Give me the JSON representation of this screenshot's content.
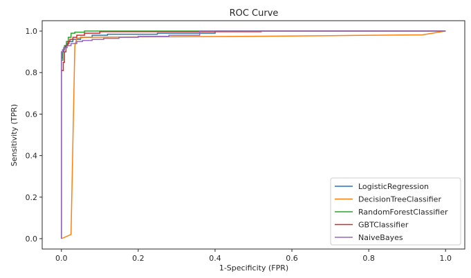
{
  "chart_data": {
    "type": "line",
    "title": "ROC Curve",
    "xlabel": "1-Specificity (FPR)",
    "ylabel": "Sensitivity (TPR)",
    "xlim": [
      -0.05,
      1.05
    ],
    "ylim": [
      -0.05,
      1.05
    ],
    "x_ticks": [
      0.0,
      0.2,
      0.4,
      0.6,
      0.8,
      1.0
    ],
    "y_ticks": [
      0.0,
      0.2,
      0.4,
      0.6,
      0.8,
      1.0
    ],
    "x_tick_labels": [
      "0.0",
      "0.2",
      "0.4",
      "0.6",
      "0.8",
      "1.0"
    ],
    "y_tick_labels": [
      "0.0",
      "0.2",
      "0.4",
      "0.6",
      "0.8",
      "1.0"
    ],
    "grid": false,
    "legend_position": "lower-right",
    "series": [
      {
        "name": "LogisticRegression",
        "color": "#1f77b4",
        "x": [
          0.0,
          0.0,
          0.003,
          0.003,
          0.006,
          0.006,
          0.01,
          0.01,
          0.015,
          0.015,
          0.02,
          0.02,
          0.03,
          0.03,
          0.05,
          0.05,
          0.08,
          0.08,
          0.12,
          0.12,
          0.25,
          0.25,
          0.4,
          0.4,
          1.0
        ],
        "y": [
          0.0,
          0.87,
          0.87,
          0.9,
          0.9,
          0.92,
          0.92,
          0.93,
          0.93,
          0.94,
          0.94,
          0.95,
          0.95,
          0.96,
          0.96,
          0.97,
          0.97,
          0.98,
          0.98,
          0.985,
          0.985,
          0.99,
          0.99,
          1.0,
          1.0
        ]
      },
      {
        "name": "DecisionTreeClassifier",
        "color": "#ff7f0e",
        "x": [
          0.0,
          0.025,
          0.035,
          0.04,
          0.06,
          0.2,
          0.5,
          0.7,
          0.94,
          1.0
        ],
        "y": [
          0.0,
          0.02,
          0.93,
          0.965,
          0.97,
          0.972,
          0.975,
          0.978,
          0.982,
          1.0
        ]
      },
      {
        "name": "RandomForestClassifier",
        "color": "#2ca02c",
        "x": [
          0.0,
          0.0,
          0.004,
          0.004,
          0.008,
          0.008,
          0.013,
          0.013,
          0.018,
          0.018,
          0.025,
          0.025,
          0.035,
          0.035,
          0.06,
          0.06,
          1.0
        ],
        "y": [
          0.0,
          0.86,
          0.86,
          0.91,
          0.91,
          0.93,
          0.93,
          0.95,
          0.95,
          0.97,
          0.97,
          0.99,
          0.99,
          0.995,
          0.995,
          1.0,
          1.0
        ]
      },
      {
        "name": "GBTClassifier",
        "color": "#d62728",
        "x": [
          0.0,
          0.0,
          0.005,
          0.005,
          0.008,
          0.008,
          0.012,
          0.012,
          0.017,
          0.017,
          0.022,
          0.022,
          0.03,
          0.03,
          0.04,
          0.04,
          0.06,
          0.06,
          0.1,
          0.1,
          0.52,
          0.52,
          1.0
        ],
        "y": [
          0.0,
          0.81,
          0.81,
          0.85,
          0.85,
          0.9,
          0.9,
          0.93,
          0.93,
          0.95,
          0.95,
          0.96,
          0.96,
          0.97,
          0.97,
          0.98,
          0.98,
          0.99,
          0.99,
          0.997,
          0.997,
          1.0,
          1.0
        ]
      },
      {
        "name": "NaiveBayes",
        "color": "#9467bd",
        "x": [
          0.0,
          0.0,
          0.003,
          0.003,
          0.008,
          0.008,
          0.015,
          0.015,
          0.025,
          0.025,
          0.04,
          0.04,
          0.055,
          0.055,
          0.08,
          0.08,
          0.11,
          0.11,
          0.15,
          0.15,
          0.2,
          0.2,
          0.28,
          0.28,
          0.36,
          0.36,
          1.0
        ],
        "y": [
          0.0,
          0.9,
          0.9,
          0.91,
          0.91,
          0.92,
          0.92,
          0.93,
          0.93,
          0.94,
          0.94,
          0.95,
          0.95,
          0.955,
          0.955,
          0.96,
          0.96,
          0.965,
          0.965,
          0.97,
          0.97,
          0.975,
          0.975,
          0.98,
          0.98,
          1.0,
          1.0
        ]
      }
    ]
  }
}
